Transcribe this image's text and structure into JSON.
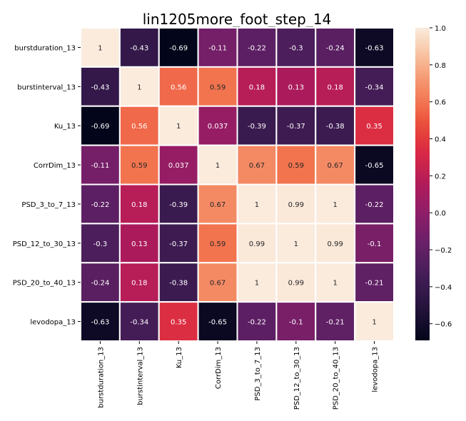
{
  "chart_data": {
    "type": "heatmap",
    "title": "lin1205more_foot_step_14",
    "xlabel": "",
    "ylabel": "",
    "labels": [
      "burstduration_13",
      "burstinterval_13",
      "Ku_13",
      "CorrDim_13",
      "PSD_3_to_7_13",
      "PSD_12_to_30_13",
      "PSD_20_to_40_13",
      "levodopa_13"
    ],
    "values": [
      [
        1,
        -0.43,
        -0.69,
        -0.11,
        -0.22,
        -0.3,
        -0.24,
        -0.63
      ],
      [
        -0.43,
        1,
        0.56,
        0.59,
        0.18,
        0.13,
        0.18,
        -0.34
      ],
      [
        -0.69,
        0.56,
        1,
        0.037,
        -0.39,
        -0.37,
        -0.38,
        0.35
      ],
      [
        -0.11,
        0.59,
        0.037,
        1,
        0.67,
        0.59,
        0.67,
        -0.65
      ],
      [
        -0.22,
        0.18,
        -0.39,
        0.67,
        1,
        0.99,
        1,
        -0.22
      ],
      [
        -0.3,
        0.13,
        -0.37,
        0.59,
        0.99,
        1,
        0.99,
        -0.1
      ],
      [
        -0.24,
        0.18,
        -0.38,
        0.67,
        1,
        0.99,
        1,
        -0.21
      ],
      [
        -0.63,
        -0.34,
        0.35,
        -0.65,
        -0.22,
        -0.1,
        -0.21,
        1
      ]
    ],
    "cell_text": [
      [
        "1",
        "-0.43",
        "-0.69",
        "-0.11",
        "-0.22",
        "-0.3",
        "-0.24",
        "-0.63"
      ],
      [
        "-0.43",
        "1",
        "0.56",
        "0.59",
        "0.18",
        "0.13",
        "0.18",
        "-0.34"
      ],
      [
        "-0.69",
        "0.56",
        "1",
        "0.037",
        "-0.39",
        "-0.37",
        "-0.38",
        "0.35"
      ],
      [
        "-0.11",
        "0.59",
        "0.037",
        "1",
        "0.67",
        "0.59",
        "0.67",
        "-0.65"
      ],
      [
        "-0.22",
        "0.18",
        "-0.39",
        "0.67",
        "1",
        "0.99",
        "1",
        "-0.22"
      ],
      [
        "-0.3",
        "0.13",
        "-0.37",
        "0.59",
        "0.99",
        "1",
        "0.99",
        "-0.1"
      ],
      [
        "-0.24",
        "0.18",
        "-0.38",
        "0.67",
        "1",
        "0.99",
        "1",
        "-0.21"
      ],
      [
        "-0.63",
        "-0.34",
        "0.35",
        "-0.65",
        "-0.22",
        "-0.1",
        "-0.21",
        "1"
      ]
    ],
    "colorbar": {
      "colormap": "rocket",
      "range": [
        -0.69,
        1
      ],
      "ticks": [
        1.0,
        0.8,
        0.6,
        0.4,
        0.2,
        0.0,
        -0.2,
        -0.4,
        -0.6
      ],
      "tick_labels": [
        "1.0",
        "0.8",
        "0.6",
        "0.4",
        "0.2",
        "0.0",
        "−0.2",
        "−0.4",
        "−0.6"
      ]
    },
    "grid": true,
    "legend": "colorbar-right"
  }
}
